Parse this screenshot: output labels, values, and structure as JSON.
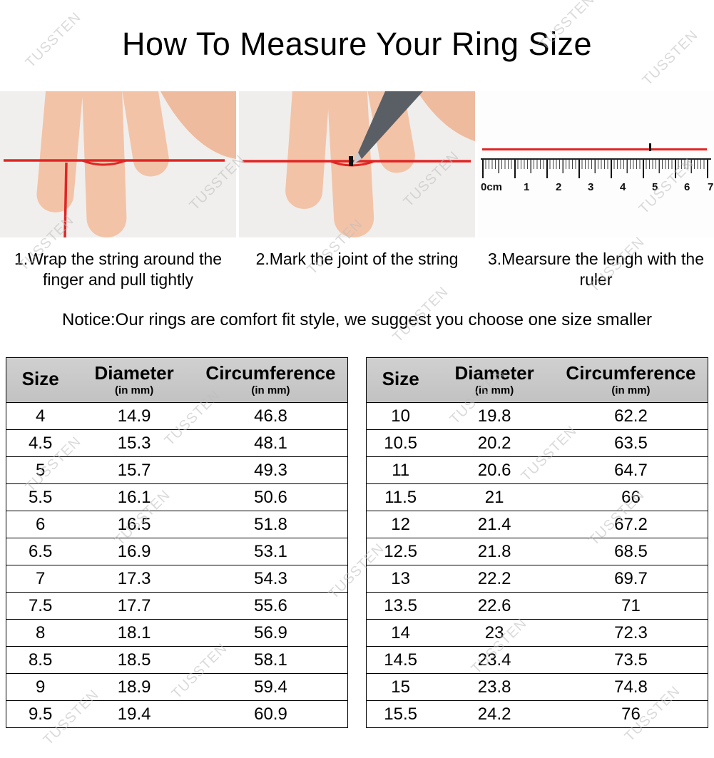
{
  "title": "How To Measure Your Ring Size",
  "watermark_text": "TUSSTEN",
  "steps": [
    {
      "caption": "1.Wrap the string around the finger and pull tightly"
    },
    {
      "caption": "2.Mark the joint of the string"
    },
    {
      "caption": "3.Mearsure the lengh with the ruler"
    }
  ],
  "notice": "Notice:Our rings are comfort fit style, we suggest you choose one size smaller",
  "ruler_labels": [
    "0cm",
    "1",
    "2",
    "3",
    "4",
    "5",
    "6",
    "7"
  ],
  "table_header": {
    "size": "Size",
    "diameter": "Diameter",
    "circumference": "Circumference",
    "unit": "(in mm)"
  },
  "size_chart": {
    "left_rows": [
      [
        "4",
        "14.9",
        "46.8"
      ],
      [
        "4.5",
        "15.3",
        "48.1"
      ],
      [
        "5",
        "15.7",
        "49.3"
      ],
      [
        "5.5",
        "16.1",
        "50.6"
      ],
      [
        "6",
        "16.5",
        "51.8"
      ],
      [
        "6.5",
        "16.9",
        "53.1"
      ],
      [
        "7",
        "17.3",
        "54.3"
      ],
      [
        "7.5",
        "17.7",
        "55.6"
      ],
      [
        "8",
        "18.1",
        "56.9"
      ],
      [
        "8.5",
        "18.5",
        "58.1"
      ],
      [
        "9",
        "18.9",
        "59.4"
      ],
      [
        "9.5",
        "19.4",
        "60.9"
      ]
    ],
    "right_rows": [
      [
        "10",
        "19.8",
        "62.2"
      ],
      [
        "10.5",
        "20.2",
        "63.5"
      ],
      [
        "11",
        "20.6",
        "64.7"
      ],
      [
        "11.5",
        "21",
        "66"
      ],
      [
        "12",
        "21.4",
        "67.2"
      ],
      [
        "12.5",
        "21.8",
        "68.5"
      ],
      [
        "13",
        "22.2",
        "69.7"
      ],
      [
        "13.5",
        "22.6",
        "71"
      ],
      [
        "14",
        "23",
        "72.3"
      ],
      [
        "14.5",
        "23.4",
        "73.5"
      ],
      [
        "15",
        "23.8",
        "74.8"
      ],
      [
        "15.5",
        "24.2",
        "76"
      ]
    ]
  }
}
